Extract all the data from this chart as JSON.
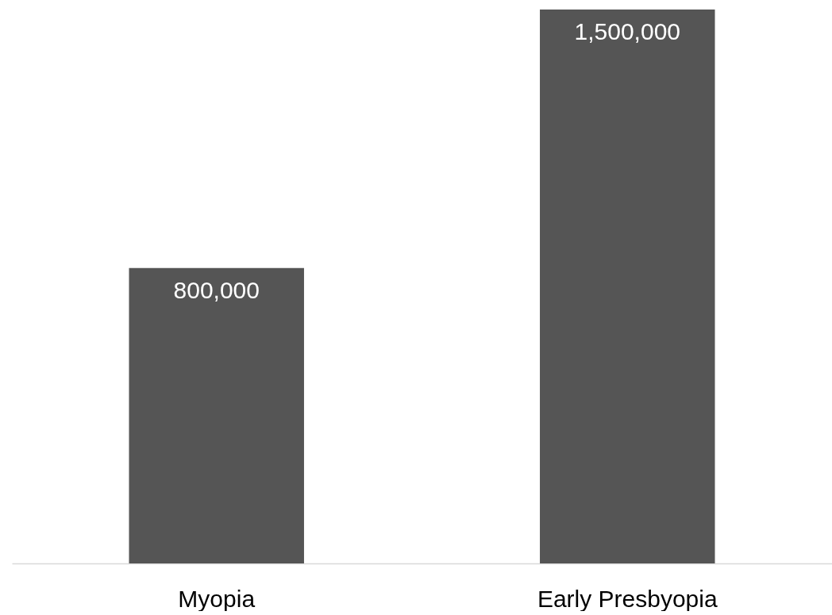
{
  "chart_data": {
    "type": "bar",
    "categories": [
      "Myopia",
      "Early Presbyopia"
    ],
    "values": [
      800000,
      1500000
    ],
    "value_labels": [
      "800,000",
      "1,500,000"
    ],
    "color": "#555555",
    "grid": false
  }
}
